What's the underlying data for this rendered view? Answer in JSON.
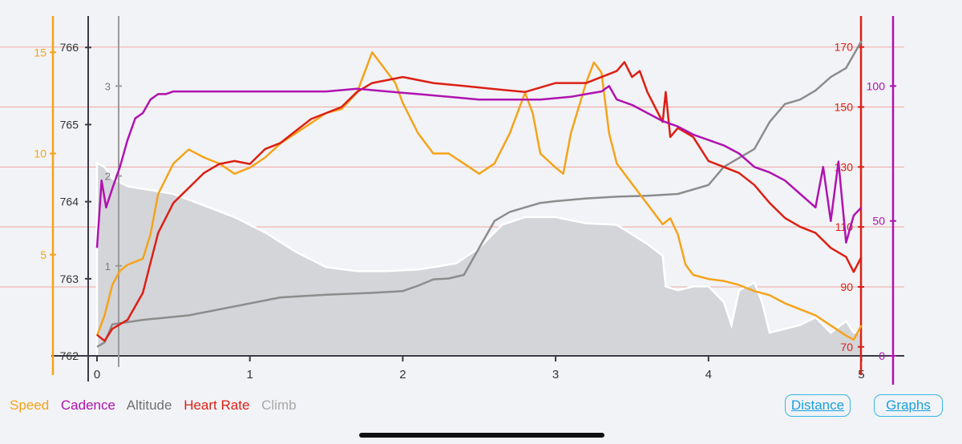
{
  "legend": {
    "speed": "Speed",
    "cadence": "Cadence",
    "altitude": "Altitude",
    "heart_rate": "Heart Rate",
    "climb": "Climb"
  },
  "buttons": {
    "distance": "Distance",
    "graphs": "Graphs"
  },
  "colors": {
    "speed": "#f5a31a",
    "cadence": "#b012b0",
    "altitude": "#808080",
    "heart_rate": "#dc1f14",
    "climb": "#b4b4b4",
    "button": "#1aa0dd"
  },
  "chart_data": {
    "type": "line",
    "title": "",
    "xlabel": "",
    "x_ticks": [
      "0",
      "1",
      "2",
      "3",
      "4",
      "5"
    ],
    "xlim": [
      0,
      5.05
    ],
    "grid": "horizontal lines at heart-rate ticks",
    "axes": {
      "speed": {
        "ticks": [
          "5",
          "10",
          "15"
        ],
        "range": [
          0,
          16
        ]
      },
      "altitude": {
        "ticks": [
          "762",
          "763",
          "764",
          "765",
          "766"
        ],
        "range": [
          762,
          766.2
        ]
      },
      "climb": {
        "ticks": [
          "1",
          "2",
          "3"
        ],
        "range": [
          0,
          3.6
        ]
      },
      "heart_rate": {
        "ticks": [
          "70",
          "90",
          "110",
          "130",
          "150",
          "170"
        ],
        "range": [
          67,
          175
        ]
      },
      "cadence": {
        "ticks": [
          "0",
          "50",
          "100"
        ],
        "range": [
          0,
          120
        ]
      }
    },
    "altitude_area": {
      "x": [
        0,
        0.05,
        0.1,
        0.2,
        0.35,
        0.5,
        0.7,
        0.9,
        1.1,
        1.3,
        1.5,
        1.7,
        1.9,
        2.1,
        2.2,
        2.35,
        2.5,
        2.65,
        2.8,
        3.0,
        3.2,
        3.4,
        3.6,
        3.7,
        3.72,
        3.8,
        3.9,
        4.0,
        4.1,
        4.15,
        4.2,
        4.3,
        4.35,
        4.4,
        4.5,
        4.6,
        4.7,
        4.8,
        4.9,
        4.95,
        5.0
      ],
      "y": [
        764.5,
        764.45,
        764.3,
        764.2,
        764.15,
        764.1,
        763.95,
        763.8,
        763.6,
        763.35,
        763.15,
        763.1,
        763.1,
        763.12,
        763.15,
        763.2,
        763.4,
        763.7,
        763.8,
        763.8,
        763.72,
        763.7,
        763.45,
        763.3,
        762.9,
        762.85,
        762.9,
        762.9,
        762.7,
        762.4,
        762.85,
        762.95,
        762.7,
        762.3,
        762.35,
        762.4,
        762.5,
        762.3,
        762.45,
        762.3,
        762.3
      ]
    },
    "series": [
      {
        "name": "Climb",
        "x": [
          0,
          0.05,
          0.1,
          0.3,
          0.6,
          0.9,
          1.2,
          1.5,
          1.8,
          2.0,
          2.1,
          2.2,
          2.3,
          2.4,
          2.5,
          2.6,
          2.7,
          2.8,
          2.9,
          3.0,
          3.2,
          3.4,
          3.6,
          3.8,
          4.0,
          4.1,
          4.2,
          4.3,
          4.4,
          4.5,
          4.6,
          4.7,
          4.8,
          4.9,
          5.0
        ],
        "y": [
          0.1,
          0.15,
          0.35,
          0.4,
          0.45,
          0.55,
          0.65,
          0.68,
          0.7,
          0.72,
          0.78,
          0.85,
          0.86,
          0.9,
          1.2,
          1.5,
          1.6,
          1.65,
          1.7,
          1.72,
          1.75,
          1.77,
          1.78,
          1.8,
          1.9,
          2.1,
          2.2,
          2.3,
          2.6,
          2.8,
          2.85,
          2.95,
          3.1,
          3.2,
          3.5
        ]
      },
      {
        "name": "Speed",
        "x": [
          0,
          0.05,
          0.1,
          0.15,
          0.2,
          0.3,
          0.35,
          0.4,
          0.5,
          0.6,
          0.7,
          0.8,
          0.9,
          1.0,
          1.1,
          1.2,
          1.3,
          1.4,
          1.5,
          1.6,
          1.7,
          1.75,
          1.8,
          1.85,
          1.95,
          2.0,
          2.1,
          2.2,
          2.3,
          2.4,
          2.5,
          2.6,
          2.7,
          2.8,
          2.85,
          2.9,
          3.0,
          3.05,
          3.1,
          3.2,
          3.25,
          3.3,
          3.35,
          3.4,
          3.5,
          3.6,
          3.7,
          3.75,
          3.8,
          3.85,
          3.9,
          4.0,
          4.1,
          4.2,
          4.3,
          4.4,
          4.5,
          4.6,
          4.7,
          4.8,
          4.9,
          4.95,
          5.0
        ],
        "y": [
          1.0,
          2.0,
          3.5,
          4.2,
          4.5,
          4.8,
          6.0,
          8.0,
          9.5,
          10.2,
          9.8,
          9.5,
          9.0,
          9.3,
          9.8,
          10.5,
          11.0,
          11.5,
          12.0,
          12.2,
          13.0,
          14.0,
          15.0,
          14.5,
          13.5,
          12.5,
          11.0,
          10.0,
          10.0,
          9.5,
          9.0,
          9.5,
          11.0,
          13.0,
          12.0,
          10.0,
          9.3,
          9.0,
          11.0,
          13.5,
          14.5,
          14.0,
          11.0,
          9.5,
          8.5,
          7.5,
          6.5,
          6.8,
          6.0,
          4.5,
          4.0,
          3.8,
          3.7,
          3.5,
          3.2,
          3.0,
          2.6,
          2.3,
          2.0,
          1.5,
          1.0,
          0.8,
          1.5
        ]
      },
      {
        "name": "Heart Rate",
        "x": [
          0,
          0.05,
          0.1,
          0.2,
          0.3,
          0.35,
          0.4,
          0.5,
          0.6,
          0.7,
          0.8,
          0.9,
          1.0,
          1.1,
          1.2,
          1.3,
          1.4,
          1.5,
          1.6,
          1.7,
          1.8,
          1.9,
          2.0,
          2.2,
          2.4,
          2.6,
          2.8,
          3.0,
          3.2,
          3.3,
          3.4,
          3.45,
          3.5,
          3.55,
          3.6,
          3.65,
          3.7,
          3.72,
          3.75,
          3.8,
          3.9,
          4.0,
          4.1,
          4.2,
          4.3,
          4.4,
          4.5,
          4.6,
          4.7,
          4.8,
          4.9,
          4.95,
          5.0
        ],
        "y": [
          74,
          72,
          76,
          79,
          88,
          98,
          108,
          118,
          123,
          128,
          131,
          132,
          131,
          136,
          138,
          142,
          146,
          148,
          150,
          155,
          158,
          159,
          160,
          158,
          157,
          156,
          155,
          158,
          158,
          160,
          162,
          165,
          160,
          162,
          155,
          150,
          145,
          155,
          140,
          143,
          140,
          132,
          130,
          128,
          124,
          118,
          113,
          110,
          108,
          103,
          100,
          95,
          100
        ]
      },
      {
        "name": "Cadence",
        "x": [
          0,
          0.03,
          0.06,
          0.1,
          0.15,
          0.2,
          0.25,
          0.3,
          0.35,
          0.4,
          0.45,
          0.5,
          0.7,
          0.9,
          1.1,
          1.3,
          1.5,
          1.7,
          1.9,
          2.1,
          2.3,
          2.5,
          2.7,
          2.9,
          3.1,
          3.2,
          3.3,
          3.35,
          3.4,
          3.5,
          3.6,
          3.7,
          3.8,
          3.9,
          4.0,
          4.1,
          4.2,
          4.3,
          4.4,
          4.5,
          4.6,
          4.7,
          4.75,
          4.8,
          4.85,
          4.9,
          4.95,
          5.0
        ],
        "y": [
          40,
          65,
          55,
          62,
          70,
          80,
          88,
          90,
          95,
          97,
          97,
          98,
          98,
          98,
          98,
          98,
          98,
          99,
          98,
          97,
          96,
          95,
          95,
          95,
          96,
          97,
          98,
          100,
          95,
          93,
          90,
          87,
          85,
          82,
          80,
          78,
          75,
          70,
          68,
          65,
          60,
          55,
          70,
          50,
          72,
          42,
          52,
          55
        ]
      }
    ]
  }
}
